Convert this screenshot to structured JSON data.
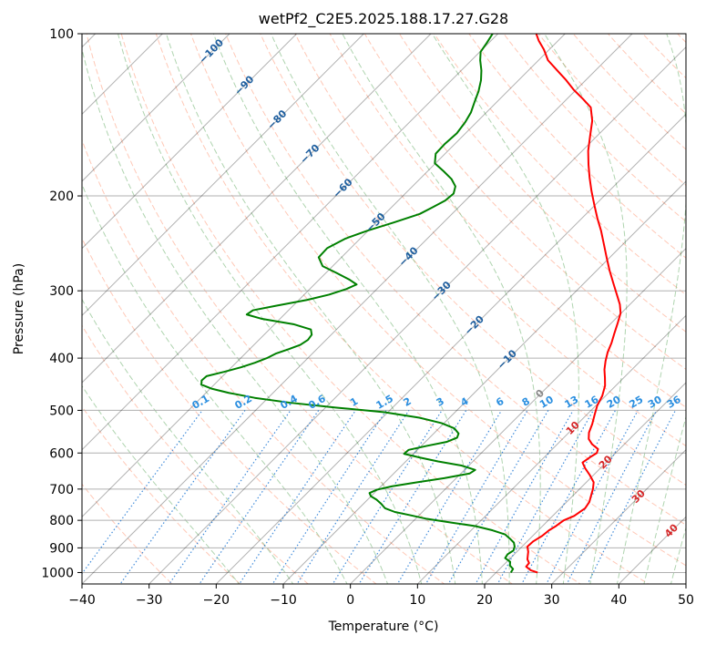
{
  "chart_data": {
    "type": "line",
    "title": "wetPf2_C2E5.2025.188.17.27.G28",
    "xlabel": "Temperature (°C)",
    "ylabel": "Pressure (hPa)",
    "xlim": [
      -40,
      50
    ],
    "ylim": [
      1050,
      100
    ],
    "y_scale": "log",
    "x_ticks": [
      -40,
      -30,
      -20,
      -10,
      0,
      10,
      20,
      30,
      40,
      50
    ],
    "y_ticks": [
      100,
      200,
      300,
      400,
      500,
      600,
      700,
      800,
      900,
      1000
    ],
    "grid": true,
    "skew_deg": 45,
    "colors": {
      "temperature": "#ff0000",
      "dewpoint": "#008000",
      "dry_adiabat": "#ff9a7a",
      "moist_adiabat": "#7ab87a",
      "mixing_ratio": "#1f77d4",
      "isotherm": "#000000",
      "grid": "#b0b0b0",
      "label_blue": "#1f5f9f",
      "label_red": "#d62728"
    },
    "isotherm_labels": [
      "-100",
      "-90",
      "-80",
      "-70",
      "-60",
      "-50",
      "-40",
      "-30",
      "-20",
      "-10",
      "0",
      "10",
      "20",
      "30",
      "40"
    ],
    "mixing_ratio_labels": [
      "0.1",
      "0.2",
      "0.4",
      "0.6",
      "1",
      "1.5",
      "2",
      "3",
      "4",
      "6",
      "8",
      "10",
      "13",
      "16",
      "20",
      "25",
      "30",
      "36"
    ],
    "series": [
      {
        "key": "temperature",
        "points": [
          [
            1000,
            26.2
          ],
          [
            990,
            24.8
          ],
          [
            975,
            23.6
          ],
          [
            960,
            23.5
          ],
          [
            945,
            22.7
          ],
          [
            930,
            22.2
          ],
          [
            915,
            21.7
          ],
          [
            895,
            20.8
          ],
          [
            875,
            20.9
          ],
          [
            855,
            21.4
          ],
          [
            835,
            21.6
          ],
          [
            820,
            22.0
          ],
          [
            800,
            22.3
          ],
          [
            785,
            23.2
          ],
          [
            760,
            23.7
          ],
          [
            740,
            23.4
          ],
          [
            720,
            22.7
          ],
          [
            700,
            22.0
          ],
          [
            680,
            21.1
          ],
          [
            660,
            19.5
          ],
          [
            640,
            17.7
          ],
          [
            625,
            16.5
          ],
          [
            612,
            16.8
          ],
          [
            600,
            17.2
          ],
          [
            590,
            16.8
          ],
          [
            578,
            15.2
          ],
          [
            565,
            13.9
          ],
          [
            550,
            13.0
          ],
          [
            530,
            12.2
          ],
          [
            510,
            11.2
          ],
          [
            490,
            10.2
          ],
          [
            470,
            9.5
          ],
          [
            450,
            8.4
          ],
          [
            435,
            7.2
          ],
          [
            420,
            5.9
          ],
          [
            405,
            4.8
          ],
          [
            390,
            3.8
          ],
          [
            375,
            3.0
          ],
          [
            360,
            2.0
          ],
          [
            345,
            1.0
          ],
          [
            330,
            -0.1
          ],
          [
            318,
            -1.5
          ],
          [
            305,
            -3.4
          ],
          [
            290,
            -5.7
          ],
          [
            275,
            -8.1
          ],
          [
            260,
            -10.5
          ],
          [
            245,
            -13.0
          ],
          [
            232,
            -15.3
          ],
          [
            220,
            -17.7
          ],
          [
            208,
            -20.1
          ],
          [
            196,
            -22.6
          ],
          [
            185,
            -24.9
          ],
          [
            175,
            -27.0
          ],
          [
            165,
            -29.1
          ],
          [
            155,
            -31.0
          ],
          [
            145,
            -33.0
          ],
          [
            137,
            -35.2
          ],
          [
            132,
            -37.7
          ],
          [
            127,
            -40.4
          ],
          [
            122,
            -42.9
          ],
          [
            117,
            -45.7
          ],
          [
            112,
            -48.6
          ],
          [
            107,
            -50.8
          ],
          [
            103,
            -52.9
          ],
          [
            100,
            -54.3
          ]
        ]
      },
      {
        "key": "dewpoint",
        "points": [
          [
            1000,
            22.2
          ],
          [
            985,
            22.0
          ],
          [
            970,
            21.0
          ],
          [
            955,
            20.5
          ],
          [
            940,
            19.2
          ],
          [
            925,
            19.0
          ],
          [
            910,
            19.3
          ],
          [
            895,
            18.9
          ],
          [
            880,
            18.2
          ],
          [
            865,
            17.0
          ],
          [
            850,
            15.7
          ],
          [
            835,
            13.2
          ],
          [
            820,
            10.0
          ],
          [
            808,
            6.0
          ],
          [
            795,
            1.7
          ],
          [
            782,
            -1.5
          ],
          [
            772,
            -4.1
          ],
          [
            760,
            -6.1
          ],
          [
            745,
            -7.4
          ],
          [
            732,
            -8.7
          ],
          [
            722,
            -10.0
          ],
          [
            712,
            -10.7
          ],
          [
            702,
            -10.1
          ],
          [
            692,
            -8.4
          ],
          [
            680,
            -5.2
          ],
          [
            668,
            -1.8
          ],
          [
            655,
            1.3
          ],
          [
            645,
            1.6
          ],
          [
            633,
            -1.1
          ],
          [
            622,
            -5.2
          ],
          [
            612,
            -8.4
          ],
          [
            602,
            -11.4
          ],
          [
            592,
            -11.3
          ],
          [
            582,
            -9.2
          ],
          [
            572,
            -6.8
          ],
          [
            562,
            -5.9
          ],
          [
            552,
            -6.3
          ],
          [
            540,
            -7.7
          ],
          [
            528,
            -10.4
          ],
          [
            516,
            -14.5
          ],
          [
            504,
            -20.5
          ],
          [
            494,
            -28.5
          ],
          [
            484,
            -36.0
          ],
          [
            474,
            -42.0
          ],
          [
            464,
            -46.6
          ],
          [
            456,
            -49.7
          ],
          [
            448,
            -51.9
          ],
          [
            440,
            -52.5
          ],
          [
            432,
            -52.4
          ],
          [
            424,
            -50.4
          ],
          [
            416,
            -48.6
          ],
          [
            408,
            -47.2
          ],
          [
            400,
            -46.1
          ],
          [
            392,
            -45.4
          ],
          [
            385,
            -44.2
          ],
          [
            378,
            -43.1
          ],
          [
            370,
            -42.7
          ],
          [
            362,
            -42.9
          ],
          [
            354,
            -43.8
          ],
          [
            346,
            -47.2
          ],
          [
            338,
            -52.8
          ],
          [
            332,
            -55.6
          ],
          [
            326,
            -55.3
          ],
          [
            320,
            -52.6
          ],
          [
            312,
            -48.8
          ],
          [
            305,
            -46.3
          ],
          [
            298,
            -44.6
          ],
          [
            292,
            -43.7
          ],
          [
            286,
            -45.5
          ],
          [
            278,
            -48.4
          ],
          [
            270,
            -51.5
          ],
          [
            260,
            -53.4
          ],
          [
            250,
            -53.5
          ],
          [
            240,
            -52.2
          ],
          [
            232,
            -50.1
          ],
          [
            224,
            -47.4
          ],
          [
            216,
            -44.8
          ],
          [
            210,
            -43.9
          ],
          [
            204,
            -43.0
          ],
          [
            198,
            -42.8
          ],
          [
            192,
            -43.6
          ],
          [
            186,
            -45.3
          ],
          [
            180,
            -47.6
          ],
          [
            174,
            -50.1
          ],
          [
            167,
            -51.4
          ],
          [
            160,
            -51.5
          ],
          [
            153,
            -51.3
          ],
          [
            146,
            -51.7
          ],
          [
            140,
            -52.3
          ],
          [
            134,
            -53.3
          ],
          [
            128,
            -54.3
          ],
          [
            122,
            -55.6
          ],
          [
            117,
            -57.0
          ],
          [
            112,
            -58.7
          ],
          [
            108,
            -59.9
          ],
          [
            104,
            -60.3
          ],
          [
            100,
            -60.8
          ]
        ]
      }
    ]
  }
}
